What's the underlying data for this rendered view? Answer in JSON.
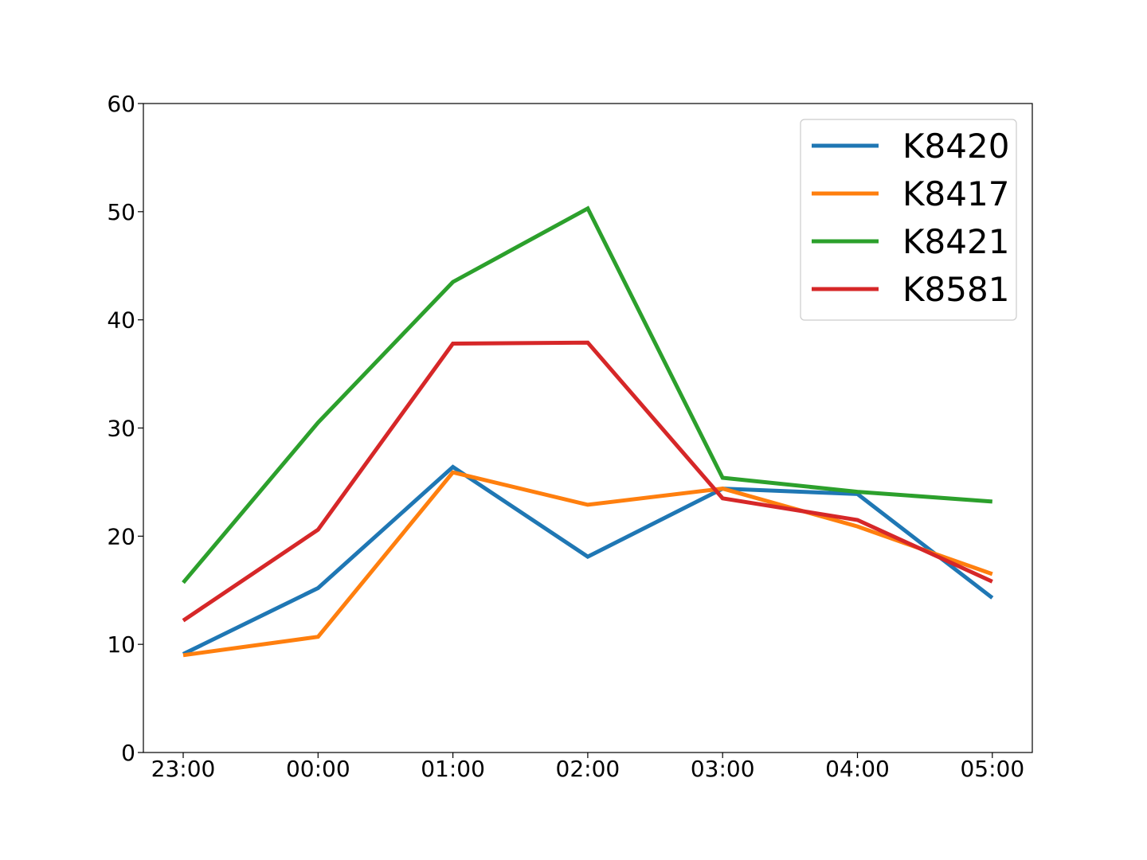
{
  "chart_data": {
    "type": "line",
    "title": "",
    "xlabel": "",
    "ylabel": "",
    "categories": [
      "23:00",
      "00:00",
      "01:00",
      "02:00",
      "03:00",
      "04:00",
      "05:00"
    ],
    "ylim": [
      0,
      60
    ],
    "yticks": [
      0,
      10,
      20,
      30,
      40,
      50,
      60
    ],
    "grid": false,
    "legend_position": "top-right",
    "series": [
      {
        "name": "K8420",
        "color": "#1f77b4",
        "values": [
          9.1,
          15.2,
          26.4,
          18.1,
          24.4,
          23.9,
          14.3
        ]
      },
      {
        "name": "K8417",
        "color": "#ff7f0e",
        "values": [
          9.0,
          10.7,
          25.9,
          22.9,
          24.4,
          20.9,
          16.5
        ]
      },
      {
        "name": "K8421",
        "color": "#2ca02c",
        "values": [
          15.7,
          30.5,
          43.5,
          50.3,
          25.4,
          24.1,
          23.2
        ]
      },
      {
        "name": "K8581",
        "color": "#d62728",
        "values": [
          12.2,
          20.6,
          37.8,
          37.9,
          23.5,
          21.5,
          15.8
        ]
      }
    ]
  }
}
